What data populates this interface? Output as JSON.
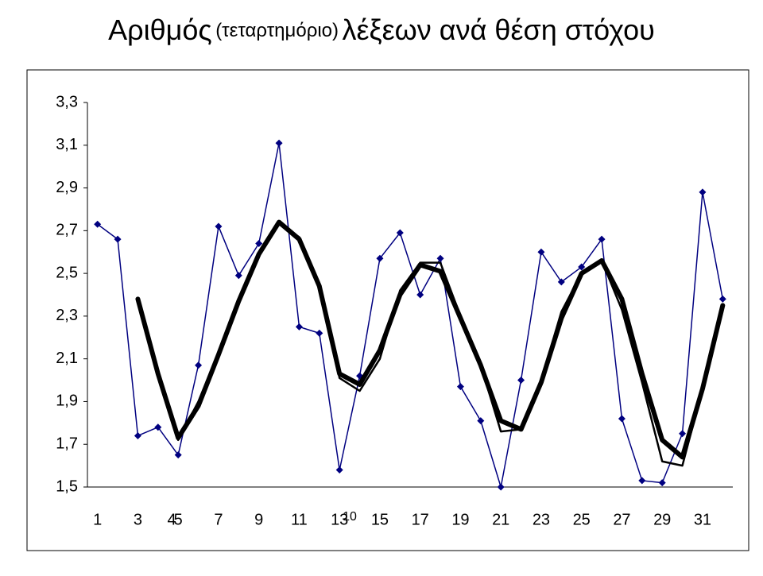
{
  "chart_data": {
    "type": "line",
    "title": [
      "Αριθμός",
      "(τεταρτημόριο)",
      "λέξεων ανά θέση στόχου"
    ],
    "x": [
      1,
      2,
      3,
      4,
      5,
      6,
      7,
      8,
      9,
      10,
      11,
      12,
      13,
      14,
      15,
      16,
      17,
      18,
      19,
      20,
      21,
      22,
      23,
      24,
      25,
      26,
      27,
      28,
      29,
      30,
      31,
      32
    ],
    "xlim": [
      0.5,
      32.5
    ],
    "xticks": [
      1,
      3,
      5,
      7,
      9,
      11,
      13,
      15,
      17,
      19,
      21,
      23,
      25,
      27,
      29,
      31
    ],
    "ylim": [
      1.5,
      3.3
    ],
    "yticks": [
      {
        "value": 1.5,
        "label": "1,5"
      },
      {
        "value": 1.7,
        "label": "1,7"
      },
      {
        "value": 1.9,
        "label": "1,9"
      },
      {
        "value": 2.1,
        "label": "2,1"
      },
      {
        "value": 2.3,
        "label": "2,3"
      },
      {
        "value": 2.5,
        "label": "2,5"
      },
      {
        "value": 2.7,
        "label": "2,7"
      },
      {
        "value": 2.9,
        "label": "2,9"
      },
      {
        "value": 3.1,
        "label": "3,1"
      },
      {
        "value": 3.3,
        "label": "3,3"
      }
    ],
    "annotations": [
      "4",
      "10"
    ],
    "series": [
      {
        "color": "#000080",
        "width": 1.5,
        "markers": true,
        "values": [
          2.73,
          2.66,
          1.74,
          1.78,
          1.65,
          2.07,
          2.72,
          2.49,
          2.64,
          3.11,
          2.25,
          2.22,
          1.58,
          2.02,
          2.57,
          2.69,
          2.4,
          2.57,
          1.97,
          1.81,
          1.5,
          2.0,
          2.6,
          2.46,
          2.53,
          2.66,
          1.82,
          1.53,
          1.52,
          1.75,
          2.88,
          2.38
        ]
      },
      {
        "color": "#000000",
        "width": 2.5,
        "markers": false,
        "values": [
          null,
          null,
          2.36,
          2.02,
          1.72,
          1.9,
          2.13,
          2.38,
          2.58,
          2.73,
          2.67,
          2.45,
          2.01,
          1.95,
          2.1,
          2.42,
          2.55,
          2.55,
          2.3,
          2.07,
          1.76,
          1.77,
          2.0,
          2.32,
          2.5,
          2.56,
          2.33,
          1.99,
          1.62,
          1.6,
          1.96,
          2.33
        ]
      },
      {
        "color": "#000000",
        "width": 6,
        "markers": false,
        "values": [
          null,
          null,
          2.38,
          2.03,
          1.73,
          1.88,
          2.12,
          2.37,
          2.59,
          2.74,
          2.66,
          2.44,
          2.03,
          1.98,
          2.14,
          2.4,
          2.54,
          2.51,
          2.29,
          2.07,
          1.81,
          1.77,
          1.99,
          2.29,
          2.5,
          2.56,
          2.38,
          2.03,
          1.72,
          1.64,
          1.96,
          2.35
        ]
      }
    ]
  }
}
